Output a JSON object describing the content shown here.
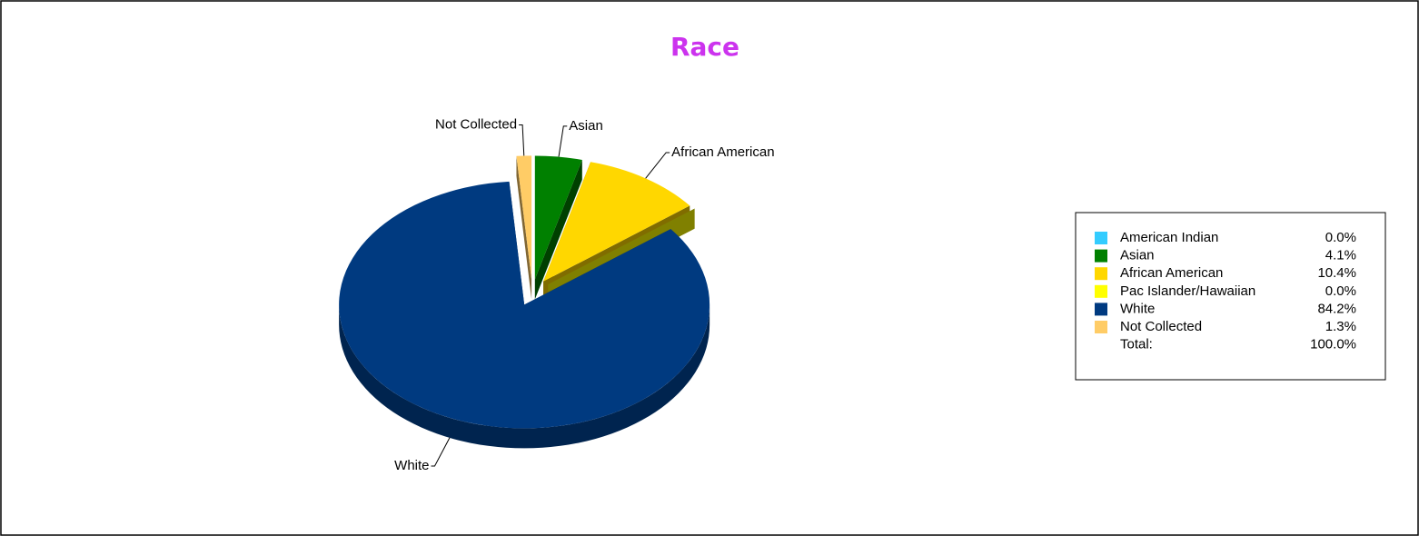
{
  "chart_data": {
    "type": "pie3d",
    "title": "Race",
    "categories": [
      "American Indian",
      "Asian",
      "African American",
      "Pac Islander/Hawaiian",
      "White",
      "Not Collected"
    ],
    "values": [
      0,
      4.1,
      10.4,
      0,
      84.2,
      1.3
    ],
    "value_labels": [
      "0.0%",
      "4.1%",
      "10.4%",
      "0.0%",
      "84.2%",
      "1.3%"
    ],
    "colors": [
      "#33ccff",
      "#008000",
      "#ffd700",
      "#ffff00",
      "#003a80",
      "#ffcc66"
    ],
    "total": {
      "label": "Total:",
      "value": 100,
      "value_label": "100.0%"
    },
    "legend": "right"
  }
}
